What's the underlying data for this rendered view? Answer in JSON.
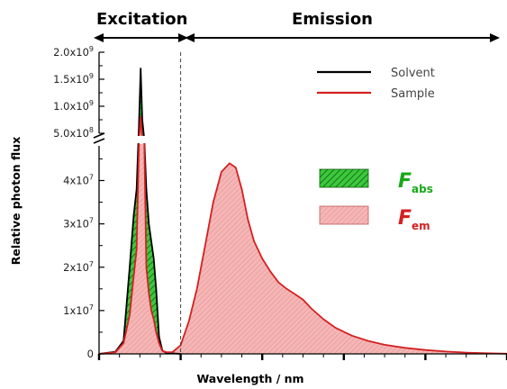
{
  "chart_data": {
    "type": "area",
    "header_left": "Excitation",
    "header_right": "Emission",
    "xlabel": "Wavelength / nm",
    "ylabel": "Relative photon flux",
    "y_break": true,
    "y_ticks_lower": [
      {
        "value": 0,
        "label": "0"
      },
      {
        "value": 10000000,
        "label": "1x10",
        "exp": "7"
      },
      {
        "value": 20000000,
        "label": "2x10",
        "exp": "7"
      },
      {
        "value": 30000000,
        "label": "3x10",
        "exp": "7"
      },
      {
        "value": 40000000,
        "label": "4x10",
        "exp": "7"
      }
    ],
    "y_ticks_upper": [
      {
        "value": 500000000,
        "label": "5.0x10",
        "exp": "8"
      },
      {
        "value": 1000000000,
        "label": "1.0x10",
        "exp": "9"
      },
      {
        "value": 1500000000,
        "label": "1.5x10",
        "exp": "9"
      },
      {
        "value": 2000000000,
        "label": "2.0x10",
        "exp": "9"
      }
    ],
    "ylim_lower": [
      0,
      48000000
    ],
    "ylim_upper": [
      500000000,
      2000000000
    ],
    "x_range": [
      0,
      100
    ],
    "x_major_ticks": [
      0,
      20,
      40,
      60,
      80,
      100
    ],
    "excitation_emission_boundary_x": 20,
    "series": [
      {
        "name": "Solvent",
        "color": "#000000",
        "x": [
          0,
          4,
          6,
          7.5,
          8.5,
          9.2,
          9.8,
          10.2,
          10.6,
          11.1,
          11.6,
          12.2,
          12.8,
          13.4,
          14,
          14.7,
          15.5,
          16.5,
          20
        ],
        "y": [
          0,
          500000,
          3000000,
          20000000,
          32000000,
          38000000,
          700000000,
          1700000000,
          750000000,
          250000000,
          38000000,
          30000000,
          26000000,
          22000000,
          15000000,
          4000000,
          800000,
          200000,
          0
        ]
      },
      {
        "name": "Sample",
        "color": "#d42020",
        "x": [
          0,
          4,
          6,
          7.5,
          8.5,
          9.2,
          9.8,
          10.2,
          10.6,
          11.1,
          11.6,
          12.2,
          12.8,
          13.4,
          14,
          14.7,
          15.5,
          16.5,
          18,
          20,
          22,
          24,
          26,
          28,
          30,
          32,
          33.5,
          35,
          36.5,
          38,
          40,
          42,
          44,
          46,
          48,
          50,
          52,
          55,
          58,
          62,
          66,
          70,
          75,
          80,
          85,
          90,
          95,
          100
        ],
        "y": [
          0,
          400000,
          2500000,
          9000000,
          18000000,
          24000000,
          240000000,
          800000000,
          300000000,
          120000000,
          20000000,
          14000000,
          10000000,
          8000000,
          5000000,
          2500000,
          700000,
          400000,
          400000,
          2000000,
          7500000,
          15000000,
          25000000,
          35000000,
          42000000,
          44000000,
          43000000,
          38000000,
          31000000,
          26000000,
          22000000,
          19000000,
          16500000,
          15000000,
          13800000,
          12500000,
          10500000,
          8000000,
          6000000,
          4200000,
          3000000,
          2100000,
          1400000,
          900000,
          550000,
          300000,
          150000,
          50000
        ]
      }
    ],
    "legend": {
      "position": "top-right",
      "entries": [
        {
          "label": "Solvent",
          "color": "#000000"
        },
        {
          "label": "Sample",
          "color": "#d42020"
        }
      ]
    },
    "annotations": [
      {
        "symbol": "F",
        "subscript": "abs",
        "color": "#18a818",
        "fill": "#35c435"
      },
      {
        "symbol": "F",
        "subscript": "em",
        "color": "#d42020",
        "fill": "#f3b0b0"
      }
    ]
  }
}
